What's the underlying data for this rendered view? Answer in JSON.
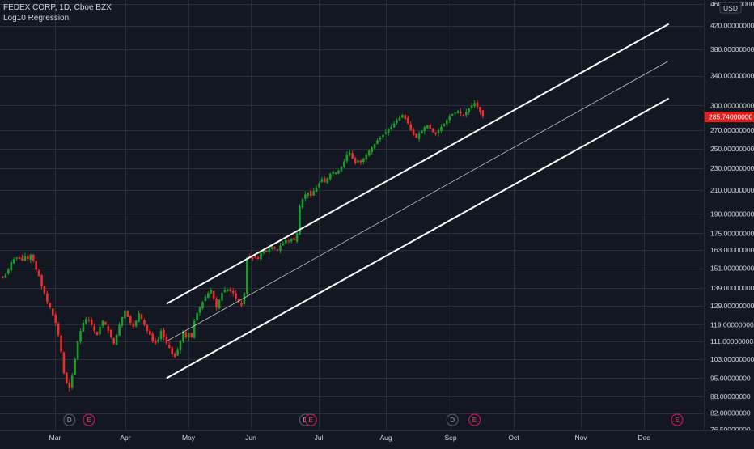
{
  "symbol_title": "FEDEX CORP, 1D, Cboe BZX",
  "indicator_label": "Log10 Regression",
  "currency_button": "USD",
  "colors": {
    "background": "#131722",
    "grid": "#2a2e39",
    "up": "#26a69a",
    "up_candle": "#1a9d2a",
    "down": "#ef2b2b",
    "text": "#d1d4dc",
    "price_tag": "#e01f1f",
    "channel": "#ffffff"
  },
  "chart_data": {
    "type": "candlestick",
    "title": "FEDEX CORP, 1D, Cboe BZX",
    "indicator": "Log10 Regression",
    "y_scale": "log",
    "ylim": [
      76.5,
      460
    ],
    "price_axis_labels": [
      "460.00000000",
      "420.00000000",
      "380.00000000",
      "340.00000000",
      "300.00000000",
      "270.00000000",
      "250.00000000",
      "230.00000000",
      "210.00000000",
      "190.00000000",
      "175.00000000",
      "163.00000000",
      "151.00000000",
      "139.00000000",
      "129.00000000",
      "119.00000000",
      "111.00000000",
      "103.00000000",
      "95.00000000",
      "88.00000000",
      "82.00000000",
      "76.50000000"
    ],
    "price_axis_values": [
      460,
      420,
      380,
      340,
      300,
      270,
      250,
      230,
      210,
      190,
      175,
      163,
      151,
      139,
      129,
      119,
      111,
      103,
      95,
      88,
      82,
      76.5
    ],
    "month_labels": [
      "Mar",
      "Apr",
      "May",
      "Jun",
      "Jul",
      "Aug",
      "Sep",
      "Oct",
      "Nov",
      "Dec"
    ],
    "last_price": "285.74000000",
    "last_price_value": 285.74,
    "closes": [
      145,
      147,
      150,
      155,
      157,
      158,
      157,
      156,
      159,
      157,
      160,
      156,
      150,
      146,
      140,
      136,
      131,
      128,
      124,
      120,
      114,
      106,
      97,
      93,
      91,
      96,
      103,
      111,
      116,
      120,
      122,
      121,
      119,
      116,
      114,
      118,
      121,
      119,
      116,
      113,
      110,
      114,
      119,
      123,
      126,
      123,
      120,
      118,
      121,
      125,
      122,
      119,
      116,
      114,
      111,
      110,
      112,
      116,
      113,
      110,
      108,
      105,
      104,
      107,
      111,
      116,
      113,
      115,
      113,
      121,
      125,
      128,
      131,
      134,
      136,
      138,
      133,
      128,
      132,
      136,
      138,
      138,
      137,
      136,
      133,
      131,
      129,
      136,
      158,
      158,
      157,
      158,
      157,
      161,
      163,
      162,
      164,
      165,
      164,
      163,
      166,
      168,
      170,
      169,
      171,
      170,
      175,
      196,
      202,
      206,
      208,
      205,
      209,
      212,
      216,
      220,
      217,
      221,
      225,
      227,
      226,
      228,
      232,
      237,
      244,
      246,
      240,
      235,
      238,
      236,
      240,
      244,
      248,
      251,
      255,
      259,
      262,
      265,
      268,
      271,
      274,
      278,
      282,
      285,
      288,
      283,
      278,
      270,
      265,
      262,
      266,
      270,
      274,
      276,
      272,
      268,
      266,
      270,
      274,
      278,
      282,
      286,
      289,
      291,
      293,
      290,
      287,
      292,
      296,
      300,
      303,
      298,
      292,
      286
    ],
    "channel_start_day": 59,
    "channel_end_day": 240,
    "channel_bands": [
      {
        "name": "upper",
        "start": 130,
        "end": 423
      },
      {
        "name": "mid",
        "start": 111,
        "end": 362
      },
      {
        "name": "lower",
        "start": 95,
        "end": 309
      }
    ],
    "events": [
      {
        "letter": "D",
        "kind": "dividend",
        "day": 24
      },
      {
        "letter": "E",
        "kind": "earnings",
        "day": 31
      },
      {
        "letter": "D",
        "kind": "dividend",
        "day": 109
      },
      {
        "letter": "E",
        "kind": "earnings",
        "day": 111
      },
      {
        "letter": "D",
        "kind": "dividend",
        "day": 162
      },
      {
        "letter": "E",
        "kind": "earnings",
        "day": 170
      },
      {
        "letter": "E",
        "kind": "earnings",
        "day": 243
      }
    ]
  }
}
